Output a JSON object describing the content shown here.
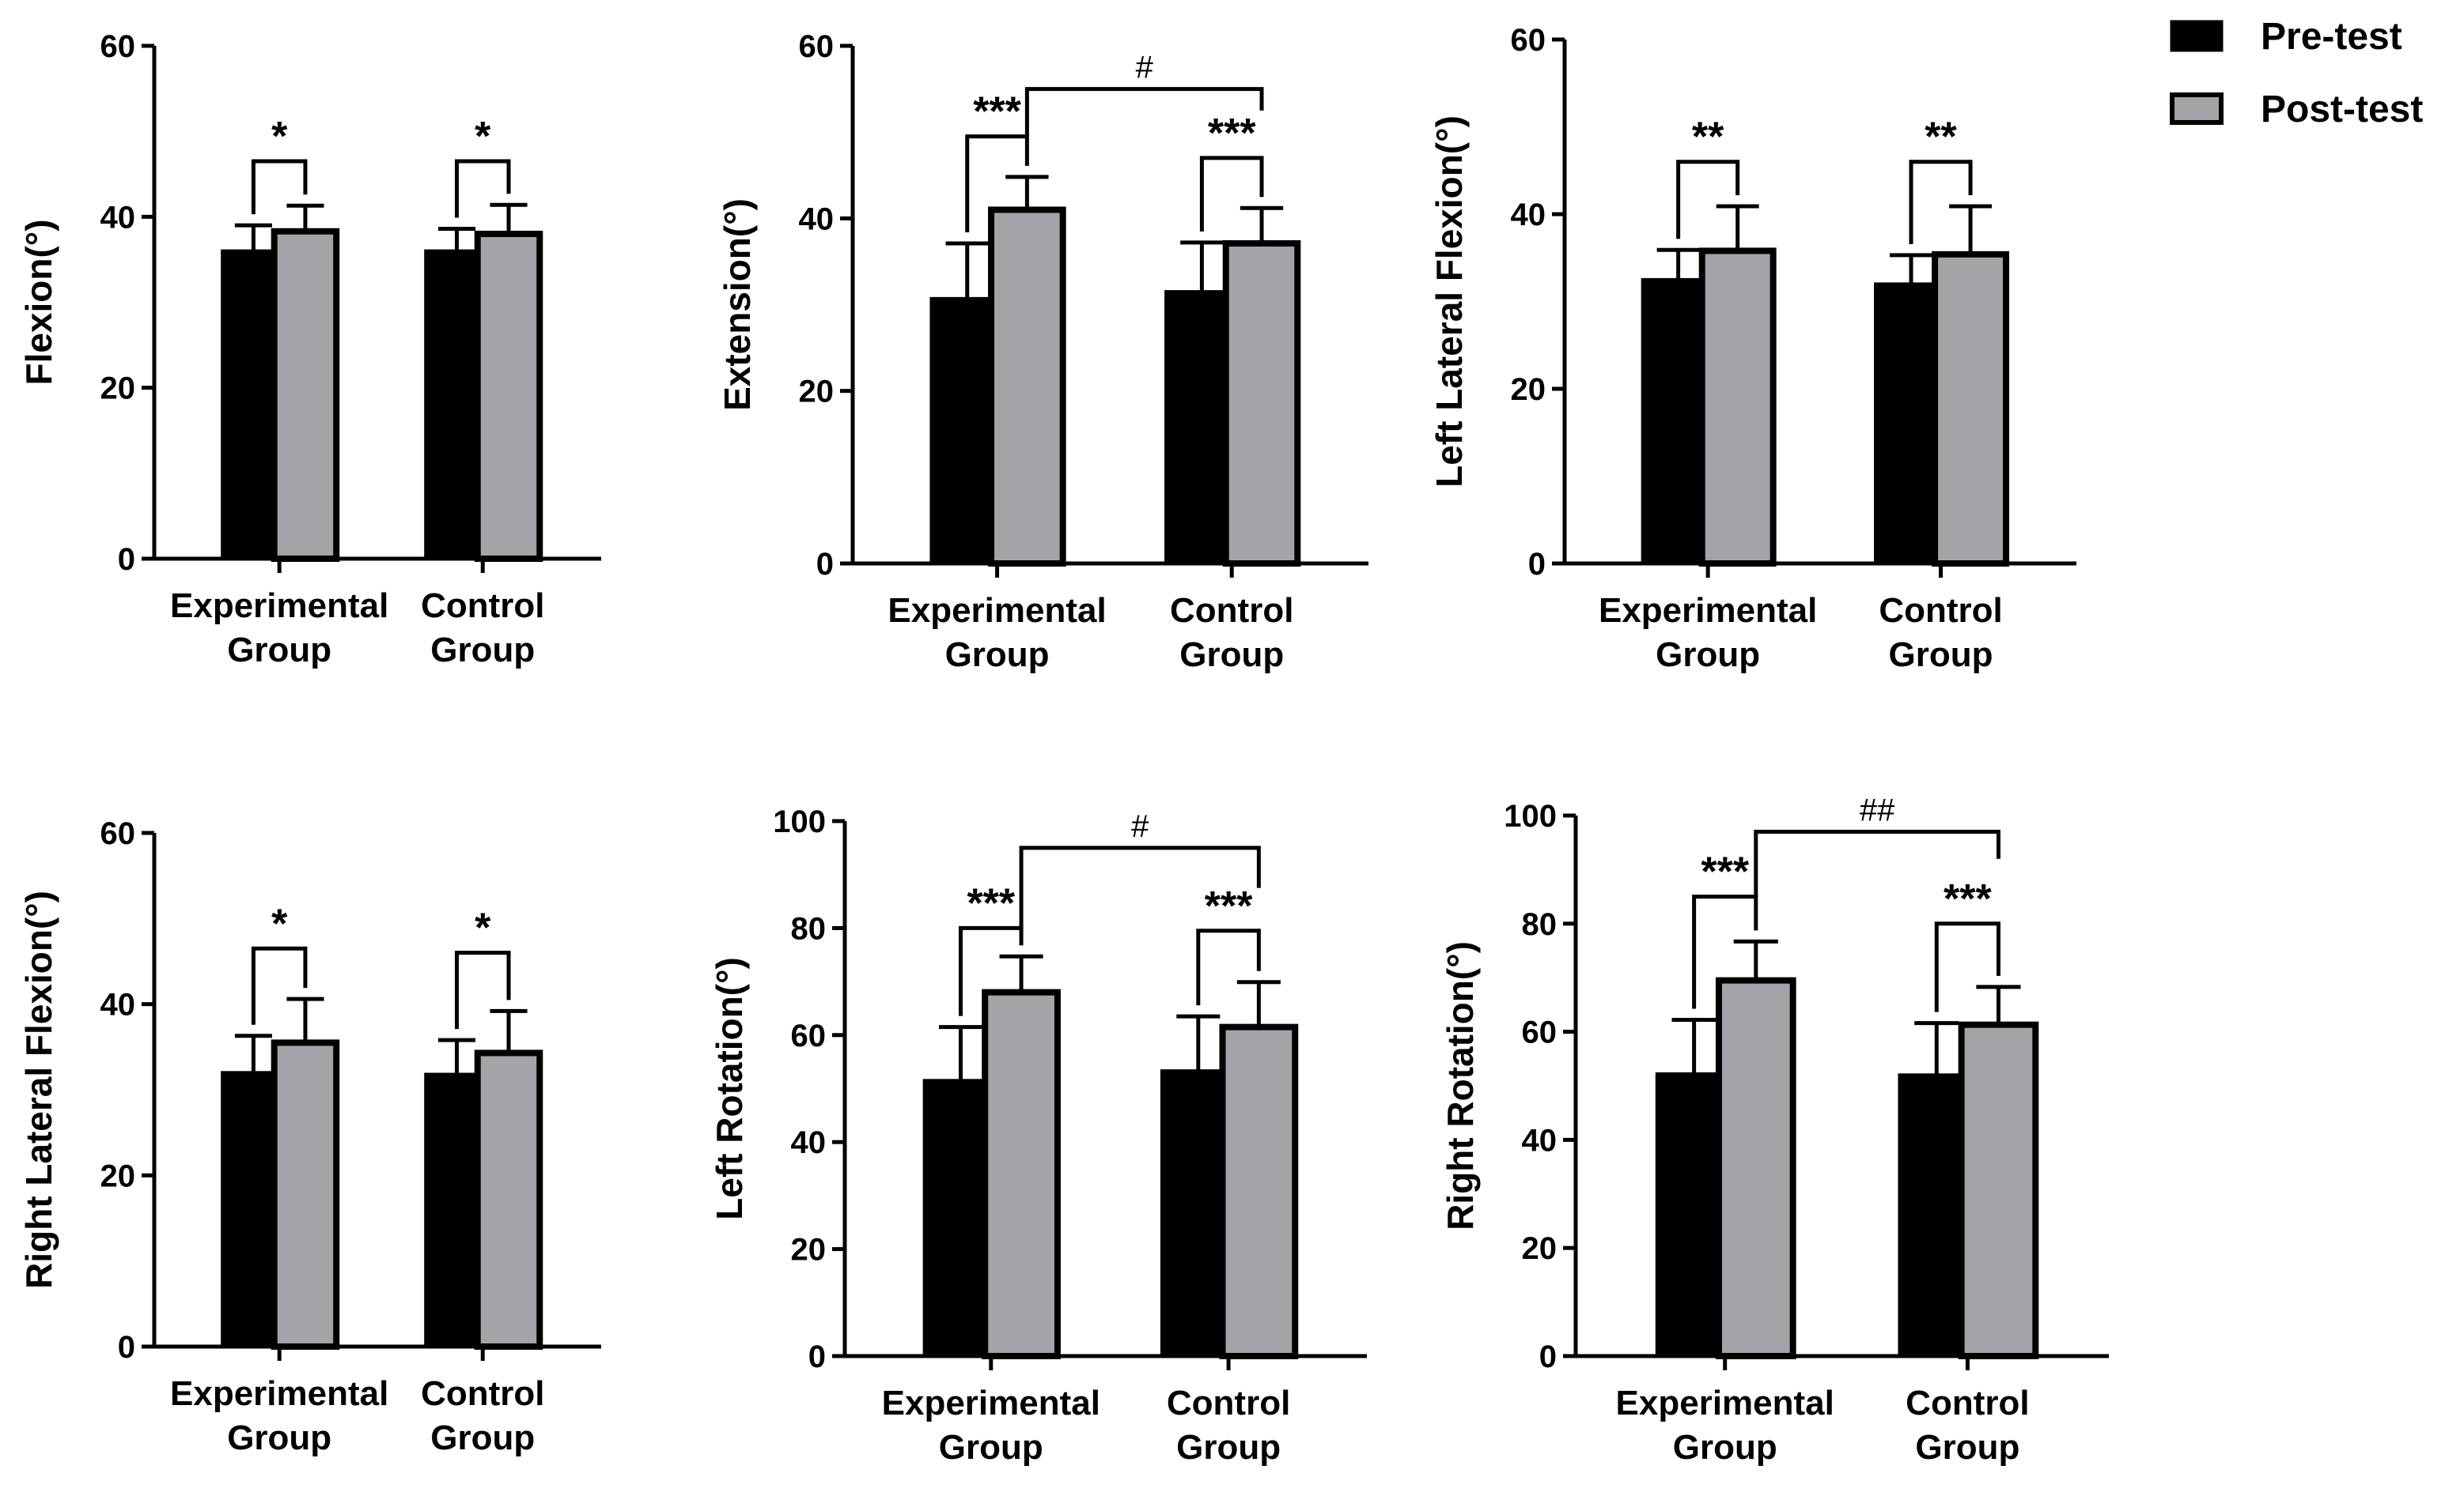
{
  "legend": {
    "items": [
      {
        "label": "Pre-test",
        "color": "#000000"
      },
      {
        "label": "Post-test",
        "color": "#a3a3a8"
      }
    ]
  },
  "colors": {
    "pre": "#000000",
    "post": "#a3a3a8",
    "axis": "#000000"
  },
  "chart_data": [
    {
      "type": "bar",
      "ylabel": "Flexion(°)",
      "ylim": [
        0,
        60
      ],
      "yticks": [
        0,
        20,
        40,
        60
      ],
      "categories": [
        [
          "Experimental",
          "Group"
        ],
        [
          "Control",
          "Group"
        ]
      ],
      "series": [
        {
          "name": "Pre-test",
          "values": [
            36.0,
            36.0
          ],
          "sd": [
            3.0,
            2.6
          ]
        },
        {
          "name": "Post-test",
          "values": [
            38.3,
            38.0
          ],
          "sd": [
            3.0,
            3.4
          ]
        }
      ],
      "within": [
        {
          "group": 0,
          "label": "*",
          "level": 46.5
        },
        {
          "group": 1,
          "label": "*",
          "level": 46.5
        }
      ],
      "between": null
    },
    {
      "type": "bar",
      "ylabel": "Extension(°)",
      "ylim": [
        0,
        60
      ],
      "yticks": [
        0,
        20,
        40,
        60
      ],
      "categories": [
        [
          "Experimental",
          "Group"
        ],
        [
          "Control",
          "Group"
        ]
      ],
      "series": [
        {
          "name": "Pre-test",
          "values": [
            30.7,
            31.5
          ],
          "sd": [
            6.4,
            5.7
          ]
        },
        {
          "name": "Post-test",
          "values": [
            41.0,
            37.1
          ],
          "sd": [
            3.8,
            4.1
          ]
        }
      ],
      "within": [
        {
          "group": 0,
          "label": "***",
          "level": 49.5
        },
        {
          "group": 1,
          "label": "***",
          "level": 47.0
        }
      ],
      "between": {
        "label": "#",
        "level": 55.0,
        "drop": 52.5
      }
    },
    {
      "type": "bar",
      "ylabel": "Left Lateral Flexion(°)",
      "ylim": [
        0,
        60
      ],
      "yticks": [
        0,
        20,
        40,
        60
      ],
      "categories": [
        [
          "Experimental",
          "Group"
        ],
        [
          "Control",
          "Group"
        ]
      ],
      "series": [
        {
          "name": "Pre-test",
          "values": [
            32.5,
            32.0
          ],
          "sd": [
            3.4,
            3.3
          ]
        },
        {
          "name": "Post-test",
          "values": [
            35.8,
            35.4
          ],
          "sd": [
            5.1,
            5.5
          ]
        }
      ],
      "within": [
        {
          "group": 0,
          "label": "**",
          "level": 46.0
        },
        {
          "group": 1,
          "label": "**",
          "level": 46.0
        }
      ],
      "between": null
    },
    {
      "type": "bar",
      "ylabel": "Right Lateral Flexion(°)",
      "ylim": [
        0,
        60
      ],
      "yticks": [
        0,
        20,
        40,
        60
      ],
      "categories": [
        [
          "Experimental",
          "Group"
        ],
        [
          "Control",
          "Group"
        ]
      ],
      "series": [
        {
          "name": "Pre-test",
          "values": [
            32.0,
            31.8
          ],
          "sd": [
            4.3,
            4.0
          ]
        },
        {
          "name": "Post-test",
          "values": [
            35.5,
            34.3
          ],
          "sd": [
            5.1,
            4.9
          ]
        }
      ],
      "within": [
        {
          "group": 0,
          "label": "*",
          "level": 46.5
        },
        {
          "group": 1,
          "label": "*",
          "level": 46.0
        }
      ],
      "between": null
    },
    {
      "type": "bar",
      "ylabel": "Left Rotation(°)",
      "ylim": [
        0,
        100
      ],
      "yticks": [
        0,
        20,
        40,
        60,
        80,
        100
      ],
      "categories": [
        [
          "Experimental",
          "Group"
        ],
        [
          "Control",
          "Group"
        ]
      ],
      "series": [
        {
          "name": "Pre-test",
          "values": [
            51.5,
            53.3
          ],
          "sd": [
            10.0,
            10.2
          ]
        },
        {
          "name": "Post-test",
          "values": [
            68.0,
            61.5
          ],
          "sd": [
            6.7,
            8.4
          ]
        }
      ],
      "within": [
        {
          "group": 0,
          "label": "***",
          "level": 80.0
        },
        {
          "group": 1,
          "label": "***",
          "level": 79.5
        }
      ],
      "between": {
        "label": "#",
        "level": 95.0,
        "drop": 87.5
      }
    },
    {
      "type": "bar",
      "ylabel": "Right Rotation(°)",
      "ylim": [
        0,
        100
      ],
      "yticks": [
        0,
        20,
        40,
        60,
        80,
        100
      ],
      "categories": [
        [
          "Experimental",
          "Group"
        ],
        [
          "Control",
          "Group"
        ]
      ],
      "series": [
        {
          "name": "Pre-test",
          "values": [
            52.2,
            52.0
          ],
          "sd": [
            10.0,
            9.6
          ]
        },
        {
          "name": "Post-test",
          "values": [
            69.5,
            61.3
          ],
          "sd": [
            7.2,
            7.0
          ]
        }
      ],
      "within": [
        {
          "group": 0,
          "label": "***",
          "level": 85.0
        },
        {
          "group": 1,
          "label": "***",
          "level": 80.0
        }
      ],
      "between": {
        "label": "##",
        "level": 97.0,
        "drop": 92.0
      }
    }
  ]
}
